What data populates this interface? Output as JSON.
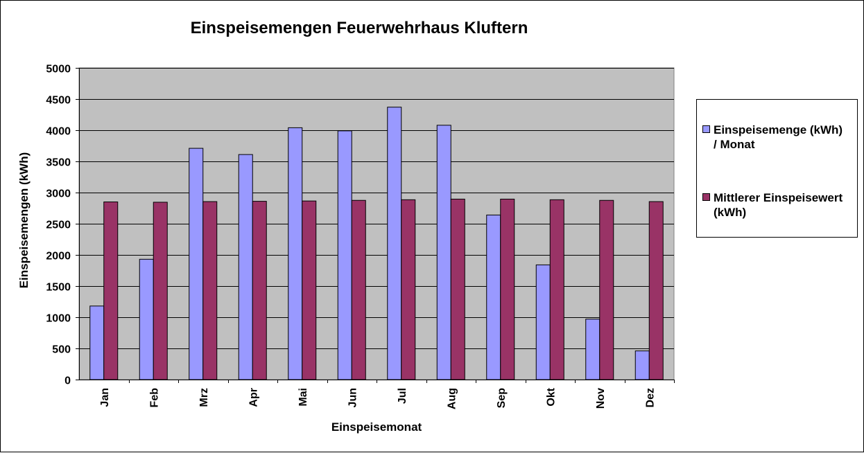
{
  "chart_data": {
    "type": "bar",
    "title": "Einspeisemengen Feuerwehrhaus Kluftern",
    "xlabel": "Einspeisemonat",
    "ylabel": "Einspeisemengen (kWh)",
    "ylim": [
      0,
      5000
    ],
    "yticks": [
      0,
      500,
      1000,
      1500,
      2000,
      2500,
      3000,
      3500,
      4000,
      4500,
      5000
    ],
    "grid": true,
    "legend_position": "right",
    "categories": [
      "Jan",
      "Feb",
      "Mrz",
      "Apr",
      "Mai",
      "Jun",
      "Jul",
      "Aug",
      "Sep",
      "Okt",
      "Nov",
      "Dez"
    ],
    "series": [
      {
        "name": "Einspeisemenge (kWh) / Monat",
        "legend_lines": [
          "Einspeisemenge (kWh)",
          "/ Monat"
        ],
        "color": "#9999ff",
        "values": [
          1180,
          1930,
          3710,
          3610,
          4040,
          3990,
          4370,
          4080,
          2640,
          1840,
          970,
          460
        ]
      },
      {
        "name": "Mittlerer Einspeisewert (kWh)",
        "legend_lines": [
          "Mittlerer Einspeisewert",
          "(kWh)"
        ],
        "color": "#993366",
        "values": [
          2850,
          2845,
          2855,
          2860,
          2865,
          2875,
          2885,
          2895,
          2895,
          2885,
          2875,
          2855
        ]
      }
    ],
    "plot_background": "#c0c0c0"
  }
}
